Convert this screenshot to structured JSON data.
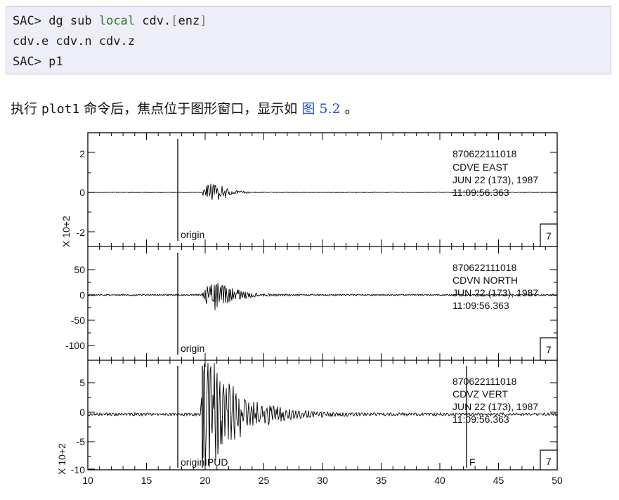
{
  "code_block": {
    "line1": {
      "prompt": "SAC> ",
      "cmd": "dg sub ",
      "keyword": "local",
      "arg": " cdv.",
      "bracket_open": "[",
      "bracket_body": "enz",
      "bracket_close": "]"
    },
    "line2": "cdv.e cdv.n cdv.z",
    "line3": "SAC> p1"
  },
  "paragraph": {
    "before": "执行 ",
    "command": "plot1",
    "middle": " 命令后，焦点位于图形窗口，显示如 ",
    "figure_ref": "图 5.2",
    "after": " 。"
  },
  "figure": {
    "x_ticks": [
      "10",
      "15",
      "20",
      "25",
      "30",
      "35",
      "40",
      "45",
      "50"
    ],
    "panels": [
      {
        "y_ticks": [
          "2",
          "0",
          "-2"
        ],
        "y_label": "X 10+2",
        "info": [
          "870622111018",
          "CDVE  EAST",
          "JUN 22 (173), 1987",
          "11:09:56.363"
        ],
        "marker_label": "origin",
        "corner_label": "7"
      },
      {
        "y_ticks": [
          "50",
          "0",
          "-50",
          "-100"
        ],
        "y_label": "",
        "info": [
          "870622111018",
          "CDVN  NORTH",
          "JUN 22 (173), 1987",
          "11:09:56.363"
        ],
        "marker_label": "origin",
        "corner_label": "7"
      },
      {
        "y_ticks": [
          "5",
          "0",
          "-5",
          "-10"
        ],
        "y_label": "X 10+2",
        "info": [
          "870622111018",
          "CDVZ  VERT",
          "JUN 22 (173), 1987",
          "11:09:56.363"
        ],
        "marker_label": "origin",
        "pick_label_p": "IPUD",
        "pick_label_f": "F",
        "corner_label": "7"
      }
    ]
  }
}
